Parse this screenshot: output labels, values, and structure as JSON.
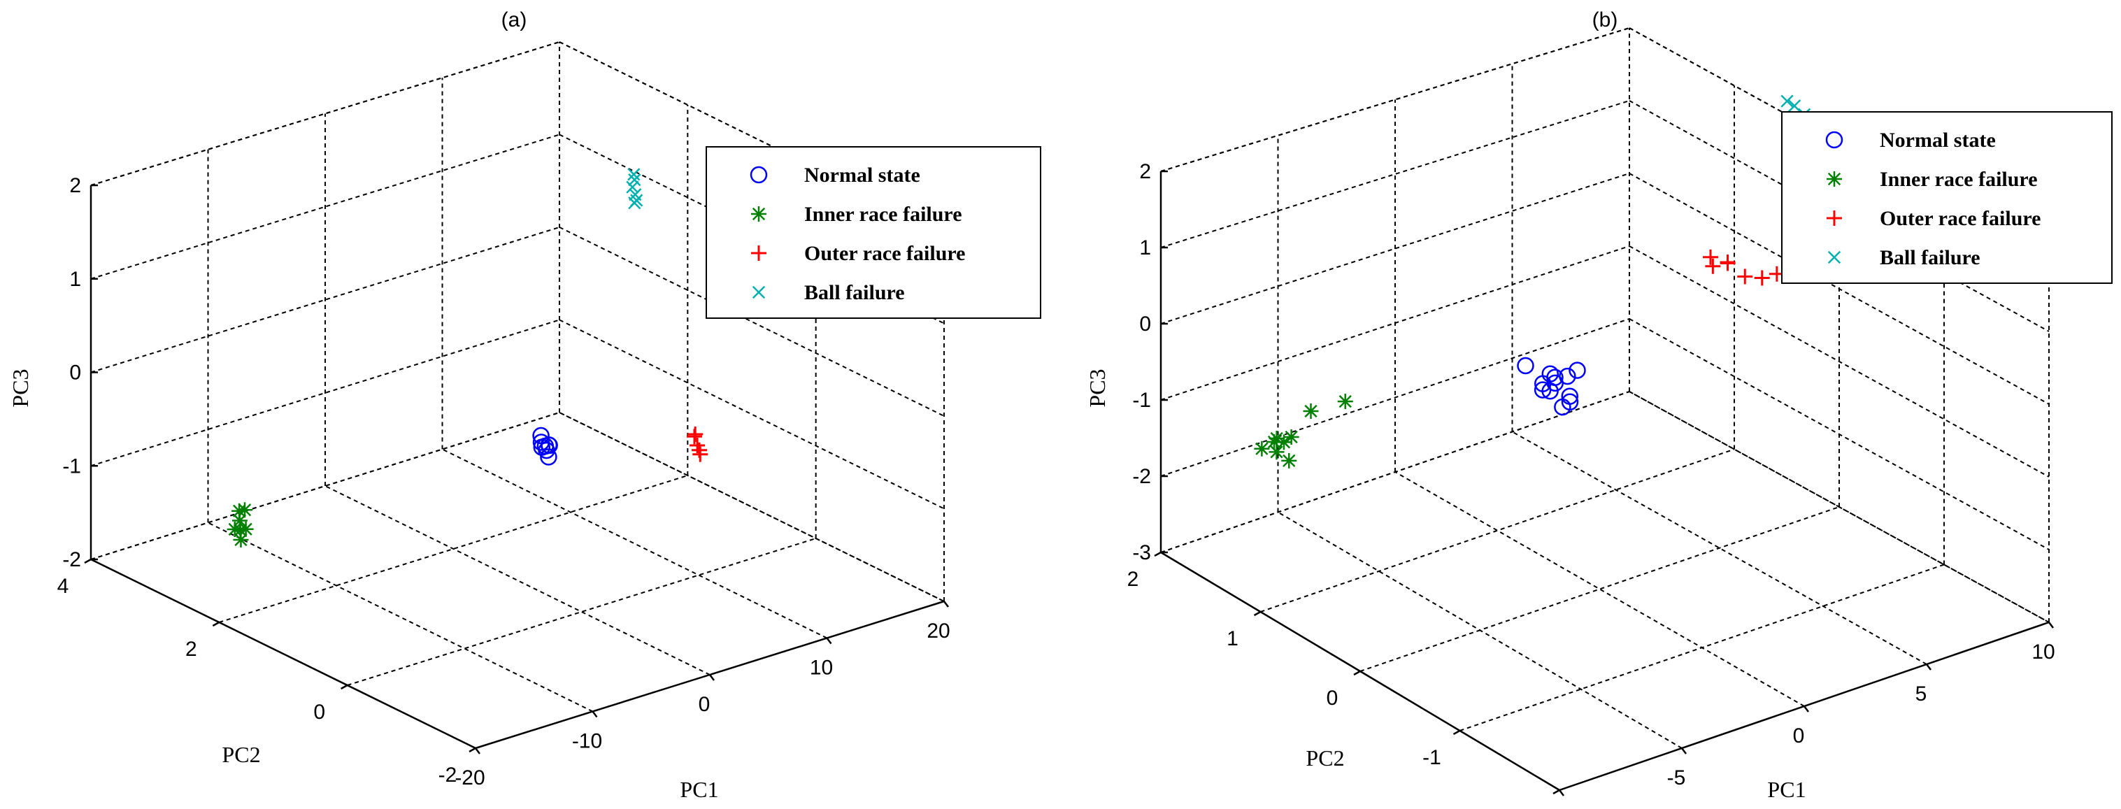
{
  "chart_data": [
    {
      "type": "scatter",
      "title": "(a)",
      "xlabel": "PC1",
      "ylabel": "PC2",
      "zlabel": "PC3",
      "xlim": [
        -20,
        20
      ],
      "ylim": [
        -2,
        4
      ],
      "zlim": [
        -2,
        2
      ],
      "xticks": [
        -20,
        -10,
        0,
        10,
        20
      ],
      "yticks": [
        -2,
        0,
        2,
        4
      ],
      "zticks": [
        -2,
        -1,
        0,
        1,
        2
      ],
      "grid": true,
      "legend_position": "top-right",
      "legend": [
        "Normal state",
        "Inner race failure",
        "Outer race failure",
        "Ball failure"
      ],
      "series": [
        {
          "name": "Normal state",
          "marker": "circle",
          "color": "#0000ff",
          "points": [
            [
              -2.0,
              0.2,
              -0.2
            ],
            [
              -1.8,
              0.3,
              -0.2
            ],
            [
              -2.2,
              0.1,
              -0.15
            ],
            [
              -1.9,
              0.2,
              -0.25
            ],
            [
              -2.1,
              0.25,
              -0.1
            ],
            [
              -2.0,
              0.15,
              -0.3
            ],
            [
              -1.7,
              0.2,
              -0.2
            ],
            [
              -2.3,
              0.2,
              -0.2
            ]
          ]
        },
        {
          "name": "Inner race failure",
          "marker": "asterisk",
          "color": "#008000",
          "points": [
            [
              -16.0,
              2.4,
              -1.3
            ],
            [
              -15.5,
              2.5,
              -1.25
            ],
            [
              -16.5,
              2.3,
              -1.35
            ],
            [
              -15.0,
              2.6,
              -1.2
            ],
            [
              -16.2,
              2.45,
              -1.3
            ],
            [
              -15.8,
              2.35,
              -1.28
            ],
            [
              -14.8,
              2.55,
              -1.18
            ]
          ]
        },
        {
          "name": "Outer race failure",
          "marker": "plus",
          "color": "#ff0000",
          "points": [
            [
              5.5,
              -0.8,
              -0.15
            ],
            [
              5.8,
              -0.7,
              -0.1
            ],
            [
              5.2,
              -0.9,
              -0.2
            ],
            [
              5.6,
              -0.75,
              -0.05
            ],
            [
              5.4,
              -0.85,
              -0.18
            ]
          ]
        },
        {
          "name": "Ball failure",
          "marker": "x",
          "color": "#00b0b0",
          "points": [
            [
              7.8,
              0.6,
              2.15
            ],
            [
              7.9,
              0.65,
              2.05
            ],
            [
              7.7,
              0.55,
              1.95
            ],
            [
              7.8,
              0.6,
              1.9
            ],
            [
              7.85,
              0.62,
              2.2
            ],
            [
              7.75,
              0.58,
              2.0
            ]
          ]
        }
      ]
    },
    {
      "type": "scatter",
      "title": "(b)",
      "xlabel": "PC1",
      "ylabel": "PC2",
      "zlabel": "PC3",
      "xlim": [
        -10,
        10
      ],
      "ylim": [
        -2,
        2
      ],
      "zlim": [
        -3,
        2
      ],
      "xticks": [
        -10,
        -5,
        0,
        5,
        10
      ],
      "yticks": [
        -2,
        -1,
        0,
        1,
        2
      ],
      "zticks": [
        -3,
        -2,
        -1,
        0,
        1,
        2
      ],
      "grid": true,
      "legend_position": "top-right",
      "legend": [
        "Normal state",
        "Inner race failure",
        "Outer race failure",
        "Ball failure"
      ],
      "series": [
        {
          "name": "Normal state",
          "marker": "circle",
          "color": "#0000ff",
          "points": [
            [
              0.0,
              0.5,
              -0.6
            ],
            [
              0.3,
              0.45,
              -0.5
            ],
            [
              -0.3,
              0.55,
              -0.7
            ],
            [
              0.2,
              0.4,
              -0.8
            ],
            [
              -0.2,
              0.5,
              -0.45
            ],
            [
              0.4,
              0.6,
              -0.65
            ],
            [
              -0.5,
              0.5,
              -0.55
            ],
            [
              0.1,
              0.45,
              -0.9
            ],
            [
              -0.8,
              0.6,
              -0.35
            ],
            [
              0.5,
              0.4,
              -0.4
            ],
            [
              0.0,
              0.55,
              -0.75
            ],
            [
              0.6,
              0.5,
              -0.85
            ]
          ]
        },
        {
          "name": "Inner race failure",
          "marker": "asterisk",
          "color": "#008000",
          "points": [
            [
              -7.0,
              1.6,
              -1.5
            ],
            [
              -6.5,
              1.55,
              -1.45
            ],
            [
              -7.3,
              1.65,
              -1.6
            ],
            [
              -6.8,
              1.5,
              -1.7
            ],
            [
              -5.5,
              1.6,
              -1.25
            ],
            [
              -7.1,
              1.55,
              -1.4
            ],
            [
              -6.6,
              1.6,
              -1.55
            ],
            [
              -4.5,
              1.5,
              -1.15
            ],
            [
              -6.9,
              1.6,
              -1.65
            ]
          ]
        },
        {
          "name": "Outer race failure",
          "marker": "plus",
          "color": "#ff0000",
          "points": [
            [
              3.5,
              -0.2,
              1.3
            ],
            [
              4.0,
              -0.25,
              1.2
            ],
            [
              3.8,
              -0.15,
              1.1
            ],
            [
              4.5,
              -0.3,
              1.0
            ],
            [
              5.2,
              -0.3,
              0.9
            ],
            [
              4.2,
              -0.2,
              1.15
            ],
            [
              5.6,
              -0.35,
              0.95
            ]
          ]
        },
        {
          "name": "Ball failure",
          "marker": "x",
          "color": "#00b0b0",
          "points": [
            [
              5.0,
              -0.6,
              3.6
            ],
            [
              5.5,
              -0.65,
              3.4
            ],
            [
              6.0,
              -0.7,
              3.3
            ],
            [
              5.8,
              -0.6,
              3.2
            ],
            [
              6.3,
              -0.75,
              3.0
            ],
            [
              5.3,
              -0.6,
              3.5
            ],
            [
              6.1,
              -0.7,
              3.1
            ]
          ]
        }
      ]
    }
  ]
}
